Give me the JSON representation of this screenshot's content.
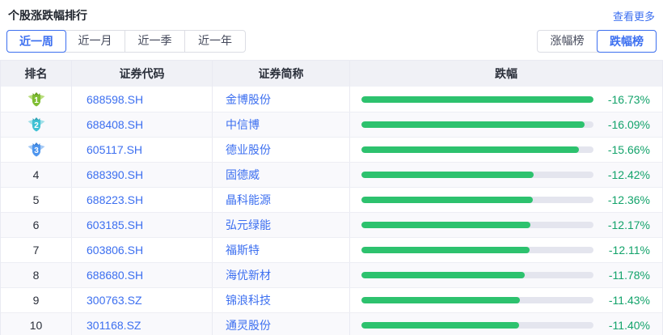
{
  "header": {
    "title": "个股涨跌幅排行",
    "more_link": "查看更多"
  },
  "period_tabs": [
    {
      "label": "近一周",
      "active": true
    },
    {
      "label": "近一月",
      "active": false
    },
    {
      "label": "近一季",
      "active": false
    },
    {
      "label": "近一年",
      "active": false
    }
  ],
  "board_tabs": [
    {
      "label": "涨幅榜",
      "active": false
    },
    {
      "label": "跌幅榜",
      "active": true
    }
  ],
  "table": {
    "columns": [
      "排名",
      "证券代码",
      "证券简称",
      "跌幅"
    ],
    "max_abs_change": 16.73,
    "rows": [
      {
        "rank": 1,
        "code": "688598.SH",
        "name": "金博股份",
        "change": "-16.73%",
        "change_abs": 16.73
      },
      {
        "rank": 2,
        "code": "688408.SH",
        "name": "中信博",
        "change": "-16.09%",
        "change_abs": 16.09
      },
      {
        "rank": 3,
        "code": "605117.SH",
        "name": "德业股份",
        "change": "-15.66%",
        "change_abs": 15.66
      },
      {
        "rank": 4,
        "code": "688390.SH",
        "name": "固德威",
        "change": "-12.42%",
        "change_abs": 12.42
      },
      {
        "rank": 5,
        "code": "688223.SH",
        "name": "晶科能源",
        "change": "-12.36%",
        "change_abs": 12.36
      },
      {
        "rank": 6,
        "code": "603185.SH",
        "name": "弘元绿能",
        "change": "-12.17%",
        "change_abs": 12.17
      },
      {
        "rank": 7,
        "code": "603806.SH",
        "name": "福斯特",
        "change": "-12.11%",
        "change_abs": 12.11
      },
      {
        "rank": 8,
        "code": "688680.SH",
        "name": "海优新材",
        "change": "-11.78%",
        "change_abs": 11.78
      },
      {
        "rank": 9,
        "code": "300763.SZ",
        "name": "锦浪科技",
        "change": "-11.43%",
        "change_abs": 11.43
      },
      {
        "rank": 10,
        "code": "301168.SZ",
        "name": "通灵股份",
        "change": "-11.40%",
        "change_abs": 11.4
      }
    ]
  },
  "colors": {
    "accent_blue": "#3c6ff0",
    "bar_green": "#2dc26e",
    "value_green": "#13a36b",
    "bar_track": "#e4e5ee",
    "medals": [
      {
        "body": "#7fbe33",
        "wing": "#b9dd7d",
        "crown": "#669f1f"
      },
      {
        "body": "#3fc1d4",
        "wing": "#9fe0e8",
        "crown": "#2fa4b6"
      },
      {
        "body": "#4d95ee",
        "wing": "#a4c9f5",
        "crown": "#3a7fd6"
      }
    ]
  }
}
